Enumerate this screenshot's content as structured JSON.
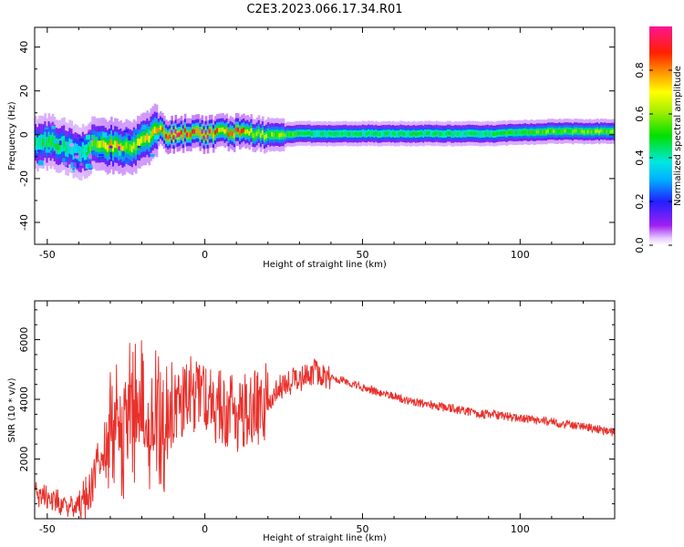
{
  "title": "C2E3.2023.066.17.34.R01",
  "colors": {
    "snr_line": "#e8302b",
    "axes": "#000000",
    "spectrogram_background": "#ffffff"
  },
  "chart_data": [
    {
      "type": "heatmap",
      "name": "spectrogram",
      "xlabel": "Height of straight line (km)",
      "ylabel": "Frequency (Hz)",
      "xlim": [
        -54,
        130
      ],
      "ylim": [
        -50,
        49
      ],
      "x_ticks": [
        -50,
        0,
        50,
        100
      ],
      "y_ticks": [
        -40,
        -20,
        0,
        20,
        40
      ],
      "grid": false,
      "colormap": "rainbow (white - purple - blue - cyan - green - yellow - red - magenta)",
      "colorbar": {
        "label": "Normalized spectral amplitude",
        "range": [
          0.0,
          1.0
        ],
        "ticks": [
          0.0,
          0.2,
          0.4,
          0.6,
          0.8
        ]
      },
      "ridge": {
        "description": "center frequency of the dominant band vs height",
        "x": [
          -54,
          -50,
          -45,
          -40,
          -35,
          -30,
          -25,
          -20,
          -15,
          -12,
          -10,
          -5,
          0,
          5,
          10,
          15,
          20,
          25,
          30,
          40,
          50,
          60,
          70,
          80,
          90,
          100,
          110,
          120,
          130
        ],
        "y": [
          -4,
          -3,
          -5,
          -9,
          -4,
          -5,
          -6,
          -3,
          3,
          0,
          0,
          1,
          0,
          1,
          1,
          1,
          0,
          0,
          0.5,
          0.5,
          0.5,
          0.5,
          0.5,
          0.5,
          0.5,
          1,
          1.5,
          1.5,
          1.5
        ],
        "amplitude": [
          0.4,
          0.5,
          0.45,
          0.35,
          0.55,
          0.75,
          0.6,
          0.65,
          0.7,
          0.9,
          1.0,
          0.8,
          0.95,
          0.7,
          0.85,
          0.65,
          0.55,
          0.55,
          0.45,
          0.45,
          0.45,
          0.45,
          0.45,
          0.45,
          0.45,
          0.5,
          0.55,
          0.55,
          0.55
        ]
      }
    },
    {
      "type": "line",
      "name": "snr",
      "xlabel": "Height of straight line (km)",
      "ylabel": "SNR (10 * v/v)",
      "xlim": [
        -54,
        130
      ],
      "ylim": [
        0,
        7300
      ],
      "x_ticks": [
        -50,
        0,
        50,
        100
      ],
      "y_ticks": [
        2000,
        4000,
        6000
      ],
      "grid": false,
      "series": [
        {
          "x": [
            -54,
            -50,
            -45,
            -40,
            -37,
            -35,
            -32,
            -30,
            -28,
            -25,
            -22,
            -20,
            -18,
            -16,
            -14,
            -12,
            -10,
            -5,
            0,
            5,
            10,
            15,
            20,
            25,
            30,
            35,
            40,
            45,
            50,
            55,
            60,
            65,
            70,
            75,
            80,
            85,
            90,
            95,
            100,
            105,
            110,
            115,
            120,
            125,
            130
          ],
          "values": [
            900,
            700,
            500,
            400,
            700,
            1500,
            2000,
            2700,
            3100,
            3300,
            3400,
            3500,
            3600,
            3500,
            3400,
            3000,
            3800,
            4200,
            4000,
            3700,
            3500,
            3600,
            4000,
            4500,
            4700,
            4900,
            4700,
            4600,
            4400,
            4250,
            4100,
            3950,
            3850,
            3750,
            3650,
            3550,
            3500,
            3450,
            3350,
            3300,
            3250,
            3150,
            3100,
            3000,
            2900
          ]
        }
      ]
    }
  ]
}
